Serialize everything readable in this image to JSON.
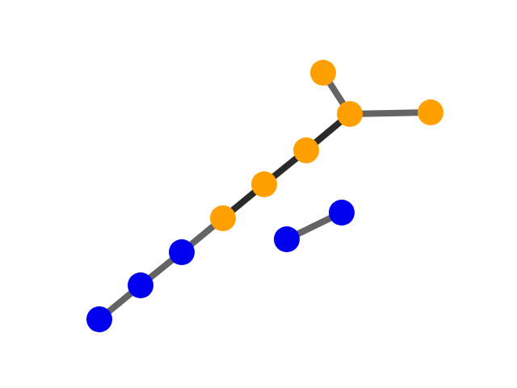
{
  "graph": {
    "colors": {
      "background": "#ffffff",
      "node_blue": "#0000ee",
      "node_orange": "#ffa000",
      "edge_light": "#646464",
      "edge_dark": "#2a2a2a"
    },
    "nodes": [
      {
        "id": "n1",
        "color_key": "node_blue"
      },
      {
        "id": "n2",
        "color_key": "node_blue"
      },
      {
        "id": "n3",
        "color_key": "node_blue"
      },
      {
        "id": "n4",
        "color_key": "node_orange"
      },
      {
        "id": "n5",
        "color_key": "node_orange"
      },
      {
        "id": "n6",
        "color_key": "node_orange"
      },
      {
        "id": "n7",
        "color_key": "node_orange"
      },
      {
        "id": "n8",
        "color_key": "node_orange"
      },
      {
        "id": "n9",
        "color_key": "node_orange"
      },
      {
        "id": "n10",
        "color_key": "node_blue"
      },
      {
        "id": "n11",
        "color_key": "node_blue"
      }
    ],
    "edges": [
      {
        "from": "n1",
        "to": "n2",
        "color_key": "edge_light"
      },
      {
        "from": "n2",
        "to": "n3",
        "color_key": "edge_light"
      },
      {
        "from": "n3",
        "to": "n4",
        "color_key": "edge_light"
      },
      {
        "from": "n4",
        "to": "n5",
        "color_key": "edge_dark"
      },
      {
        "from": "n5",
        "to": "n6",
        "color_key": "edge_dark"
      },
      {
        "from": "n6",
        "to": "n7",
        "color_key": "edge_dark"
      },
      {
        "from": "n7",
        "to": "n8",
        "color_key": "edge_light"
      },
      {
        "from": "n7",
        "to": "n9",
        "color_key": "edge_light"
      },
      {
        "from": "n10",
        "to": "n11",
        "color_key": "edge_light"
      }
    ]
  }
}
